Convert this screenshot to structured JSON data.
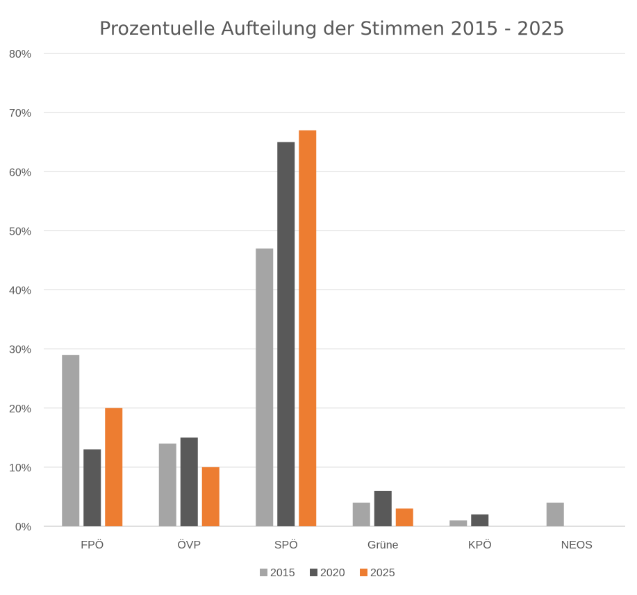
{
  "chart_data": {
    "type": "bar",
    "title": "Prozentuelle Aufteilung der Stimmen 2015 - 2025",
    "xlabel": "",
    "ylabel": "",
    "categories": [
      "FPÖ",
      "ÖVP",
      "SPÖ",
      "Grüne",
      "KPÖ",
      "NEOS"
    ],
    "series": [
      {
        "name": "2015",
        "color": "#a5a5a5",
        "values": [
          29,
          14,
          47,
          4,
          1,
          4
        ]
      },
      {
        "name": "2020",
        "color": "#595959",
        "values": [
          13,
          15,
          65,
          6,
          2,
          null
        ]
      },
      {
        "name": "2025",
        "color": "#ed7d31",
        "values": [
          20,
          10,
          67,
          3,
          null,
          null
        ]
      }
    ],
    "ylim": [
      0,
      80
    ],
    "yticks": [
      0,
      10,
      20,
      30,
      40,
      50,
      60,
      70,
      80
    ],
    "ytick_labels": [
      "0%",
      "10%",
      "20%",
      "30%",
      "40%",
      "50%",
      "60%",
      "70%",
      "80%"
    ],
    "grid": true,
    "legend_position": "bottom"
  }
}
